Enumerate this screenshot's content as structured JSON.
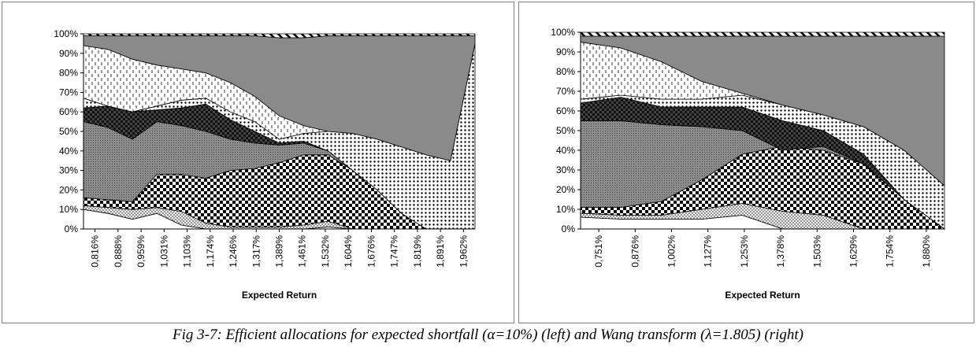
{
  "caption": "Fig 3-7: Efficient allocations for expected shortfall (α=10%) (left) and Wang transform (λ=1.805) (right)",
  "chart_data": [
    {
      "type": "area",
      "stacked": true,
      "percent_stacked": true,
      "title": "",
      "xlabel": "Expected Return",
      "ylabel": "",
      "ylim": [
        0,
        100
      ],
      "yticks": [
        "0%",
        "10%",
        "20%",
        "30%",
        "40%",
        "50%",
        "60%",
        "70%",
        "80%",
        "90%",
        "100%"
      ],
      "xticks": [
        "0,816%",
        "0,888%",
        "0,959%",
        "1,031%",
        "1,103%",
        "1,174%",
        "1,246%",
        "1,317%",
        "1,389%",
        "1,461%",
        "1,532%",
        "1,604%",
        "1,676%",
        "1,747%",
        "1,819%",
        "1,891%",
        "1,962%"
      ],
      "grid": false,
      "legend": "none",
      "x": [
        0,
        1,
        2,
        3,
        4,
        5,
        6,
        7,
        8,
        9,
        10,
        11,
        12,
        13,
        14,
        15,
        16
      ],
      "boundaries": [
        [
          10,
          8,
          5,
          8,
          2,
          0,
          0,
          0,
          0,
          0,
          1,
          0,
          0,
          0,
          0,
          0,
          0
        ],
        [
          12,
          11,
          10,
          11,
          9,
          3,
          1,
          1,
          1,
          2,
          4,
          0,
          0,
          0,
          0,
          0,
          0
        ],
        [
          16,
          15,
          14,
          28,
          28,
          26,
          30,
          31,
          34,
          38,
          38,
          30,
          20,
          8,
          0,
          0,
          0
        ],
        [
          55,
          52,
          46,
          55,
          53,
          50,
          46,
          44,
          43,
          44,
          40,
          30,
          20,
          8,
          0,
          0,
          0
        ],
        [
          62,
          63,
          60,
          61,
          62,
          64,
          56,
          50,
          44,
          45,
          40,
          30,
          20,
          8,
          0,
          0,
          0
        ],
        [
          67,
          63,
          60,
          63,
          66,
          67,
          60,
          55,
          46,
          49,
          50,
          49,
          46,
          42,
          38,
          35,
          95
        ],
        [
          94,
          92,
          87,
          84,
          82,
          80,
          75,
          68,
          58,
          53,
          50,
          49,
          46,
          42,
          38,
          35,
          95
        ],
        [
          99,
          99,
          99,
          99,
          99,
          99,
          99,
          99,
          98,
          98,
          99,
          99,
          99,
          99,
          99,
          99,
          99
        ],
        [
          100,
          100,
          100,
          100,
          100,
          100,
          100,
          100,
          100,
          100,
          100,
          100,
          100,
          100,
          100,
          100,
          100
        ]
      ]
    },
    {
      "type": "area",
      "stacked": true,
      "percent_stacked": true,
      "title": "",
      "xlabel": "Expected Return",
      "ylabel": "",
      "ylim": [
        0,
        100
      ],
      "yticks": [
        "0%",
        "10%",
        "20%",
        "30%",
        "40%",
        "50%",
        "60%",
        "70%",
        "80%",
        "90%",
        "100%"
      ],
      "xticks": [
        "0,751%",
        "0,876%",
        "1,002%",
        "1,127%",
        "1,253%",
        "1,378%",
        "1,503%",
        "1,629%",
        "1,754%",
        "1,880%"
      ],
      "grid": false,
      "legend": "none",
      "x": [
        0,
        1,
        2,
        3,
        4,
        5,
        6,
        7,
        8,
        9
      ],
      "boundaries": [
        [
          6,
          5,
          5,
          5,
          7,
          0,
          0,
          0,
          0,
          0
        ],
        [
          8,
          7,
          7,
          10,
          13,
          9,
          7,
          0,
          0,
          0
        ],
        [
          11,
          11,
          14,
          25,
          38,
          42,
          40,
          33,
          15,
          0
        ],
        [
          55,
          55,
          53,
          52,
          50,
          40,
          42,
          33,
          15,
          0
        ],
        [
          64,
          67,
          62,
          62,
          62,
          55,
          50,
          38,
          15,
          0
        ],
        [
          66,
          68,
          66,
          66,
          68,
          63,
          58,
          52,
          40,
          22
        ],
        [
          95,
          92,
          85,
          75,
          69,
          63,
          58,
          52,
          40,
          22
        ],
        [
          98,
          98,
          98,
          98,
          98,
          98,
          98,
          98,
          98,
          98
        ],
        [
          100,
          100,
          100,
          100,
          100,
          100,
          100,
          100,
          100,
          100
        ]
      ]
    }
  ]
}
